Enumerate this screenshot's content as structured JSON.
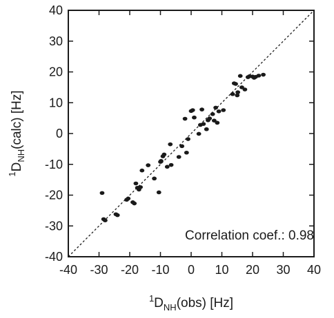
{
  "chart_data": {
    "type": "scatter",
    "xlabel": {
      "sup": "1",
      "main": "D",
      "sub": "NH",
      "rest": "(obs) [Hz]"
    },
    "ylabel": {
      "sup": "1",
      "main": "D",
      "sub": "NH",
      "rest": "(calc) [Hz]"
    },
    "xlim": [
      -40,
      40
    ],
    "ylim": [
      -40,
      40
    ],
    "xticks": [
      -40,
      -30,
      -20,
      -10,
      0,
      10,
      20,
      30,
      40
    ],
    "yticks": [
      -40,
      -30,
      -20,
      -10,
      0,
      10,
      20,
      30,
      40
    ],
    "identity_line": true,
    "grid": false,
    "annotation": "Correlation coef.: 0.98",
    "points": [
      [
        -29,
        -19.3
      ],
      [
        -28.5,
        -27.8
      ],
      [
        -28,
        -28.2
      ],
      [
        -24.5,
        -26.2
      ],
      [
        -24,
        -26.5
      ],
      [
        -21,
        -21.5
      ],
      [
        -20.5,
        -21.1
      ],
      [
        -19,
        -22.3
      ],
      [
        -18.5,
        -22.7
      ],
      [
        -18,
        -16.2
      ],
      [
        -17.5,
        -17.6
      ],
      [
        -17,
        -18.2
      ],
      [
        -16.5,
        -17.4
      ],
      [
        -16,
        -12.0
      ],
      [
        -14,
        -10.3
      ],
      [
        -12,
        -14.6
      ],
      [
        -10.5,
        -19.1
      ],
      [
        -10,
        -9.2
      ],
      [
        -9.8,
        -8.9
      ],
      [
        -9.2,
        -7.4
      ],
      [
        -8.8,
        -6.8
      ],
      [
        -7.8,
        -10.8
      ],
      [
        -6.8,
        -3.5
      ],
      [
        -6.5,
        -10.2
      ],
      [
        -4,
        -7.6
      ],
      [
        -3,
        -4.1
      ],
      [
        -2,
        4.8
      ],
      [
        -1.5,
        -6.2
      ],
      [
        -1,
        -1.8
      ],
      [
        0,
        7.3
      ],
      [
        0.5,
        7.6
      ],
      [
        1,
        5.2
      ],
      [
        2.5,
        -0.1
      ],
      [
        3,
        2.8
      ],
      [
        3.5,
        7.8
      ],
      [
        4,
        3.1
      ],
      [
        5,
        1.4
      ],
      [
        5.5,
        4.3
      ],
      [
        6,
        4.9
      ],
      [
        7,
        6.3
      ],
      [
        7.5,
        4.2
      ],
      [
        8,
        8.4
      ],
      [
        8.5,
        3.5
      ],
      [
        9,
        7.2
      ],
      [
        10.5,
        7.6
      ],
      [
        13.5,
        12.8
      ],
      [
        14,
        16.3
      ],
      [
        14.5,
        16.1
      ],
      [
        15,
        12.4
      ],
      [
        15.2,
        13.4
      ],
      [
        16,
        18.7
      ],
      [
        16.5,
        15.0
      ],
      [
        17.5,
        14.3
      ],
      [
        18.5,
        18.3
      ],
      [
        19,
        18.6
      ],
      [
        20,
        18.5
      ],
      [
        20.5,
        18.1
      ],
      [
        21,
        18.4
      ],
      [
        22,
        18.8
      ],
      [
        23.5,
        19.1
      ]
    ]
  }
}
